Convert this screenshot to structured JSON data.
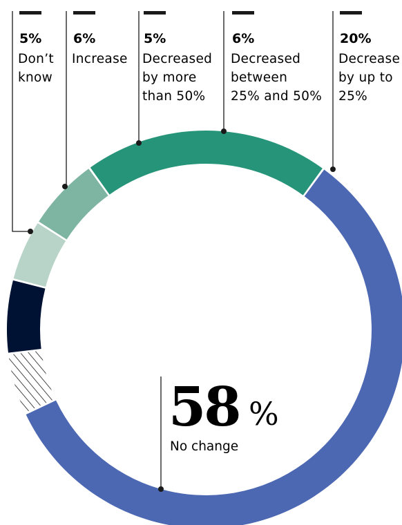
{
  "chart_data": {
    "type": "pie",
    "variant": "donut",
    "title": "",
    "slices": [
      {
        "label": "Don’t know",
        "value": 5,
        "pct_text": "5%",
        "color": "#000000",
        "pattern": "hatched"
      },
      {
        "label": "Increase",
        "value": 6,
        "pct_text": "6%",
        "color": "#001233"
      },
      {
        "label": "Decreased by more than 50%",
        "value": 5,
        "pct_text": "5%",
        "color": "#b8d4c8"
      },
      {
        "label": "Decreased between 25% and 50%",
        "value": 6,
        "pct_text": "6%",
        "color": "#7eb5a2"
      },
      {
        "label": "Decrease by up to 25%",
        "value": 20,
        "pct_text": "20%",
        "color": "#259478"
      },
      {
        "label": "No change",
        "value": 58,
        "pct_text": "58",
        "color": "#4d68b3"
      }
    ],
    "label_lines": [
      {
        "slice": 0,
        "lines": [
          "Don’t",
          "know"
        ]
      },
      {
        "slice": 1,
        "lines": [
          "Increase"
        ]
      },
      {
        "slice": 2,
        "lines": [
          "Decreased",
          "by more",
          "than 50%"
        ]
      },
      {
        "slice": 3,
        "lines": [
          "Decreased",
          "between",
          "25% and 50%"
        ]
      },
      {
        "slice": 4,
        "lines": [
          "Decrease",
          "by up to",
          "25%"
        ]
      }
    ],
    "center": {
      "value_text": "58",
      "unit": "%",
      "label": "No change"
    }
  }
}
